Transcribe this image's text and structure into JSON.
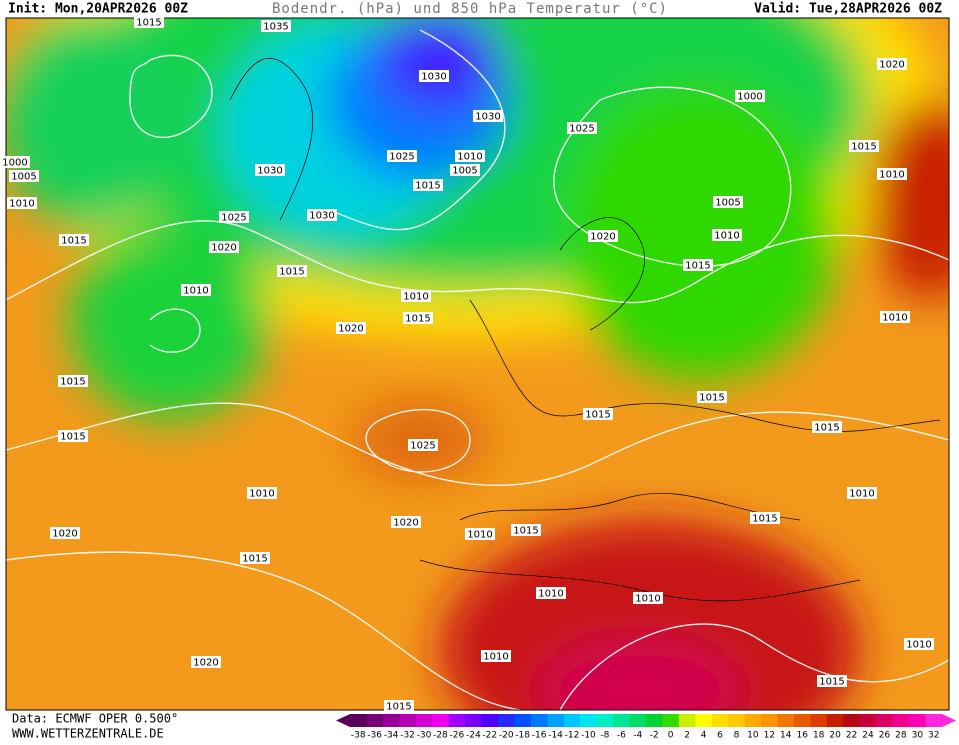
{
  "header": {
    "init": "Init: Mon,20APR2026 00Z",
    "title": "Bodendr. (hPa) und 850 hPa Temperatur (°C)",
    "valid": "Valid: Tue,28APR2026 00Z"
  },
  "footer": {
    "source": "Data: ECMWF OPER 0.500°",
    "site": "WWW.WETTERZENTRALE.DE"
  },
  "colorbar": {
    "ticks": [
      -38,
      -36,
      -34,
      -32,
      -30,
      -28,
      -26,
      -24,
      -22,
      -20,
      -18,
      -16,
      -14,
      -12,
      -10,
      -8,
      -6,
      -4,
      -2,
      0,
      2,
      4,
      6,
      8,
      10,
      12,
      14,
      16,
      18,
      20,
      22,
      24,
      26,
      28,
      30,
      32
    ],
    "colors": [
      "#5a005a",
      "#780078",
      "#960096",
      "#b400b4",
      "#d200d2",
      "#f000f0",
      "#a000ff",
      "#7800ff",
      "#5000ff",
      "#2828ff",
      "#0050ff",
      "#0078ff",
      "#00a0ff",
      "#00c8ff",
      "#00e6f0",
      "#00f0c8",
      "#00e696",
      "#00dc64",
      "#00d232",
      "#32dc00",
      "#c8f000",
      "#ffff00",
      "#ffdc00",
      "#ffc800",
      "#ffaa00",
      "#ff9600",
      "#f07800",
      "#e65a00",
      "#dc3c00",
      "#c81e00",
      "#b40a14",
      "#c8003c",
      "#dc0064",
      "#f0008c",
      "#ff00b4",
      "#ff28dc"
    ]
  },
  "map": {
    "pressure_labels": [
      1015,
      1035,
      1030,
      1030,
      1025,
      1000,
      1020,
      1015,
      1010,
      1025,
      1010,
      1005,
      1015,
      1030,
      1030,
      1025,
      1020,
      1015,
      1005,
      1010,
      1020,
      1015,
      1010,
      1015,
      1005,
      1010,
      1000,
      1010,
      1015,
      1020,
      1010,
      1015,
      1015,
      1025,
      1015,
      1015,
      1015,
      1010,
      1010,
      1020,
      1015,
      1010,
      1015,
      1020,
      1015,
      1010,
      1010,
      1020,
      1010,
      1015,
      1010,
      1015
    ]
  }
}
